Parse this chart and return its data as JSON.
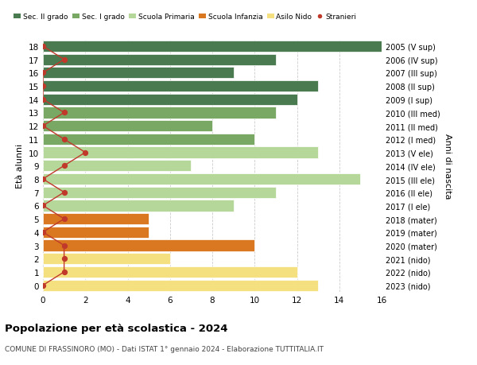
{
  "ages": [
    18,
    17,
    16,
    15,
    14,
    13,
    12,
    11,
    10,
    9,
    8,
    7,
    6,
    5,
    4,
    3,
    2,
    1,
    0
  ],
  "right_labels": [
    "2005 (V sup)",
    "2006 (IV sup)",
    "2007 (III sup)",
    "2008 (II sup)",
    "2009 (I sup)",
    "2010 (III med)",
    "2011 (II med)",
    "2012 (I med)",
    "2013 (V ele)",
    "2014 (IV ele)",
    "2015 (III ele)",
    "2016 (II ele)",
    "2017 (I ele)",
    "2018 (mater)",
    "2019 (mater)",
    "2020 (mater)",
    "2021 (nido)",
    "2022 (nido)",
    "2023 (nido)"
  ],
  "bar_values": [
    16,
    11,
    9,
    13,
    12,
    11,
    8,
    10,
    13,
    7,
    15,
    11,
    9,
    5,
    5,
    10,
    6,
    12,
    13
  ],
  "bar_colors": [
    "#4a7a50",
    "#4a7a50",
    "#4a7a50",
    "#4a7a50",
    "#4a7a50",
    "#78a864",
    "#78a864",
    "#78a864",
    "#b5d89a",
    "#b5d89a",
    "#b5d89a",
    "#b5d89a",
    "#b5d89a",
    "#d97820",
    "#d97820",
    "#d97820",
    "#f5e080",
    "#f5e080",
    "#f5e080"
  ],
  "stranieri_values": [
    0,
    1,
    0,
    0,
    0,
    1,
    0,
    1,
    2,
    1,
    0,
    1,
    0,
    1,
    0,
    1,
    1,
    1,
    0
  ],
  "legend_labels": [
    "Sec. II grado",
    "Sec. I grado",
    "Scuola Primaria",
    "Scuola Infanzia",
    "Asilo Nido",
    "Stranieri"
  ],
  "legend_colors": [
    "#4a7a50",
    "#78a864",
    "#b5d89a",
    "#d97820",
    "#f5e080",
    "#c0392b"
  ],
  "ylabel_left": "Età alunni",
  "ylabel_right": "Anni di nascita",
  "title": "Popolazione per età scolastica - 2024",
  "subtitle": "COMUNE DI FRASSINORO (MO) - Dati ISTAT 1° gennaio 2024 - Elaborazione TUTTITALIA.IT",
  "xlim": [
    0,
    16
  ],
  "xticks": [
    0,
    2,
    4,
    6,
    8,
    10,
    12,
    14,
    16
  ],
  "background_color": "#ffffff",
  "grid_color": "#cccccc",
  "stranieri_color": "#c0392b",
  "stranieri_line_color": "#c0392b"
}
